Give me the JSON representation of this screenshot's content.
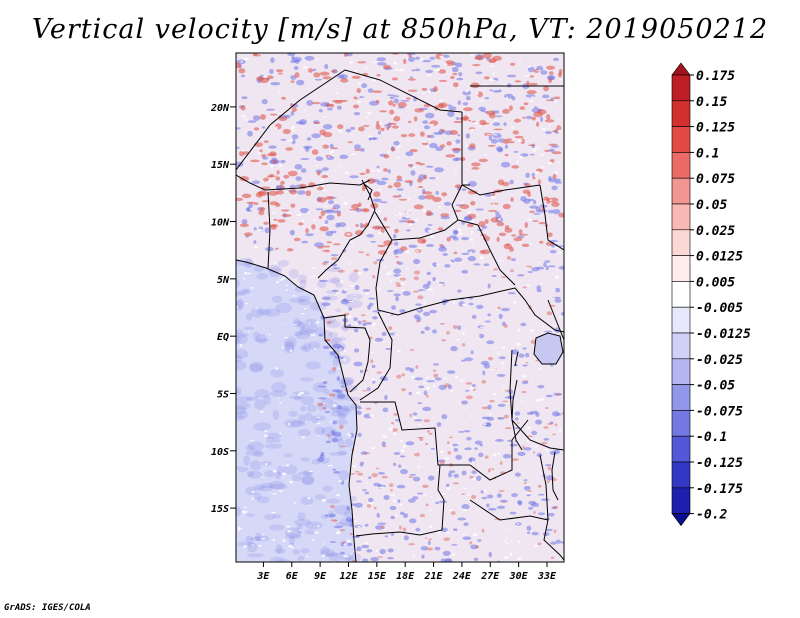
{
  "title": "Vertical velocity [m/s] at 850hPa, VT: 2019050212",
  "footer": "GrADS: IGES/COLA",
  "map": {
    "lat_labels": [
      "20N",
      "15N",
      "10N",
      "5N",
      "EQ",
      "5S",
      "10S",
      "15S"
    ],
    "lat_values": [
      20,
      15,
      10,
      5,
      0,
      -5,
      -10,
      -15
    ],
    "lon_labels": [
      "3E",
      "6E",
      "9E",
      "12E",
      "15E",
      "18E",
      "21E",
      "24E",
      "27E",
      "30E",
      "33E"
    ],
    "lon_values": [
      3,
      6,
      9,
      12,
      15,
      18,
      21,
      24,
      27,
      30,
      33
    ],
    "lat_range": [
      -19.7,
      24.7
    ],
    "lon_range": [
      0.1,
      34.8
    ],
    "ocean_color": "#d6d8f7",
    "land_base_color": "#efe6f2",
    "red_color": "#e05a4e",
    "blue_color": "#6f74e6",
    "border_color": "#000000"
  },
  "colorbar": {
    "labels": [
      "0.175",
      "0.15",
      "0.125",
      "0.1",
      "0.075",
      "0.05",
      "0.025",
      "0.0125",
      "0.005",
      "-0.005",
      "-0.0125",
      "-0.025",
      "-0.05",
      "-0.075",
      "-0.1",
      "-0.125",
      "-0.175",
      "-0.2"
    ],
    "colors": [
      "#a0141e",
      "#be1e26",
      "#d22f2f",
      "#e24a46",
      "#eb6b66",
      "#f39590",
      "#f8b9b5",
      "#fbd7d5",
      "#fdeceb",
      "#ffffff",
      "#e7e8fb",
      "#cfd1f7",
      "#b3b6f1",
      "#9397ea",
      "#7479e2",
      "#5258d6",
      "#3338c4",
      "#1c20ac",
      "#0c0e8e"
    ]
  }
}
